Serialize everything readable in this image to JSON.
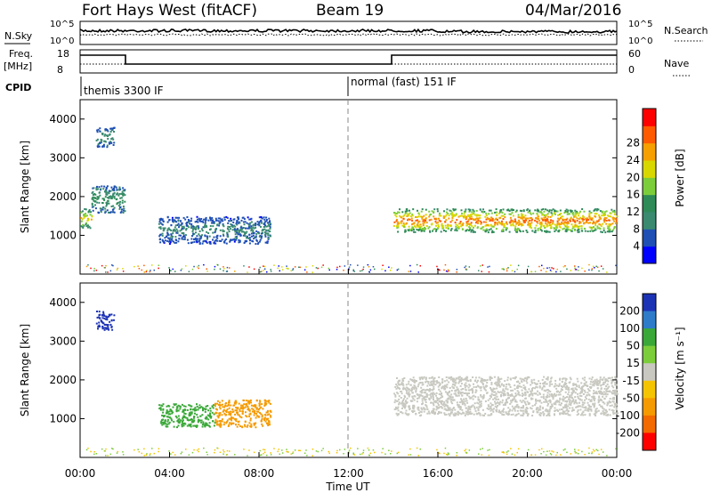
{
  "header": {
    "radar": "Fort Hays West (fitACF)",
    "beam": "Beam 19",
    "date": "04/Mar/2016"
  },
  "colors": {
    "power": [
      "#0000ff",
      "#1f4fb5",
      "#3a8a70",
      "#2e8b57",
      "#7ccd3a",
      "#d8d800",
      "#f5a000",
      "#ff5a00",
      "#ff0000"
    ],
    "velocity_pos": [
      "#1c32b5",
      "#2e7cc9",
      "#3aa838",
      "#7ccd3a"
    ],
    "velocity_neg": [
      "#f5c400",
      "#f59a00",
      "#f26a00",
      "#ff0000"
    ],
    "velocity_grey": "#c8c8c0"
  },
  "top_panels": {
    "nsky": {
      "label": "N.Sky",
      "ticks": [
        "10^5",
        "10^0"
      ],
      "right_label": "N.Search",
      "right_ticks": [
        "10^5",
        "10^0"
      ]
    },
    "freq": {
      "label": "Freq.",
      "unit": "[MHz]",
      "ticks": [
        "18",
        "8"
      ],
      "right_label": "Nave",
      "right_ticks": [
        "60",
        "0"
      ]
    },
    "cpid": {
      "label": "CPID",
      "modes": [
        {
          "start": "00:00",
          "name": "themis 3300 IF"
        },
        {
          "start": "12:00",
          "name": "normal (fast) 151 IF"
        }
      ]
    }
  },
  "chart_data": [
    {
      "type": "heatmap",
      "title": "Power",
      "ylabel": "Slant Range [km]",
      "xlabel": "",
      "xlim": [
        "00:00",
        "24:00"
      ],
      "ylim": [
        0,
        4500
      ],
      "yticks": [
        "1000",
        "2000",
        "3000",
        "4000"
      ],
      "colorbar": {
        "label": "Power [dB]",
        "ticks": [
          "4",
          "8",
          "12",
          "16",
          "20",
          "24",
          "28"
        ]
      },
      "regions": [
        {
          "t": [
            0.0,
            0.5
          ],
          "r": [
            1200,
            1700
          ],
          "value_db": 22
        },
        {
          "t": [
            0.5,
            2.0
          ],
          "r": [
            1600,
            2300
          ],
          "value_db": 12
        },
        {
          "t": [
            0.7,
            1.5
          ],
          "r": [
            3300,
            3800
          ],
          "value_db": 10
        },
        {
          "t": [
            3.5,
            8.5
          ],
          "r": [
            800,
            1500
          ],
          "value_db": 8
        },
        {
          "t": [
            14.0,
            24.0
          ],
          "r": [
            1100,
            1700
          ],
          "value_db": 28
        }
      ]
    },
    {
      "type": "heatmap",
      "title": "Velocity",
      "ylabel": "Slant Range [km]",
      "xlabel": "Time UT",
      "xlim": [
        "00:00",
        "24:00"
      ],
      "ylim": [
        0,
        4500
      ],
      "xticks": [
        "00:00",
        "04:00",
        "08:00",
        "12:00",
        "16:00",
        "20:00",
        "00:00"
      ],
      "yticks": [
        "1000",
        "2000",
        "3000",
        "4000"
      ],
      "colorbar": {
        "label": "Velocity [m s⁻¹]",
        "ticks": [
          "200",
          "100",
          "50",
          "15",
          "-15",
          "-50",
          "-100",
          "-200"
        ]
      },
      "regions": [
        {
          "t": [
            0.7,
            1.5
          ],
          "r": [
            3300,
            3800
          ],
          "value_ms": 200
        },
        {
          "t": [
            3.5,
            6.0
          ],
          "r": [
            800,
            1400
          ],
          "value_ms": 50
        },
        {
          "t": [
            6.0,
            8.5
          ],
          "r": [
            800,
            1500
          ],
          "value_ms": -50
        },
        {
          "t": [
            14.0,
            24.0
          ],
          "r": [
            1100,
            2100
          ],
          "value_ms": 0
        }
      ]
    }
  ]
}
